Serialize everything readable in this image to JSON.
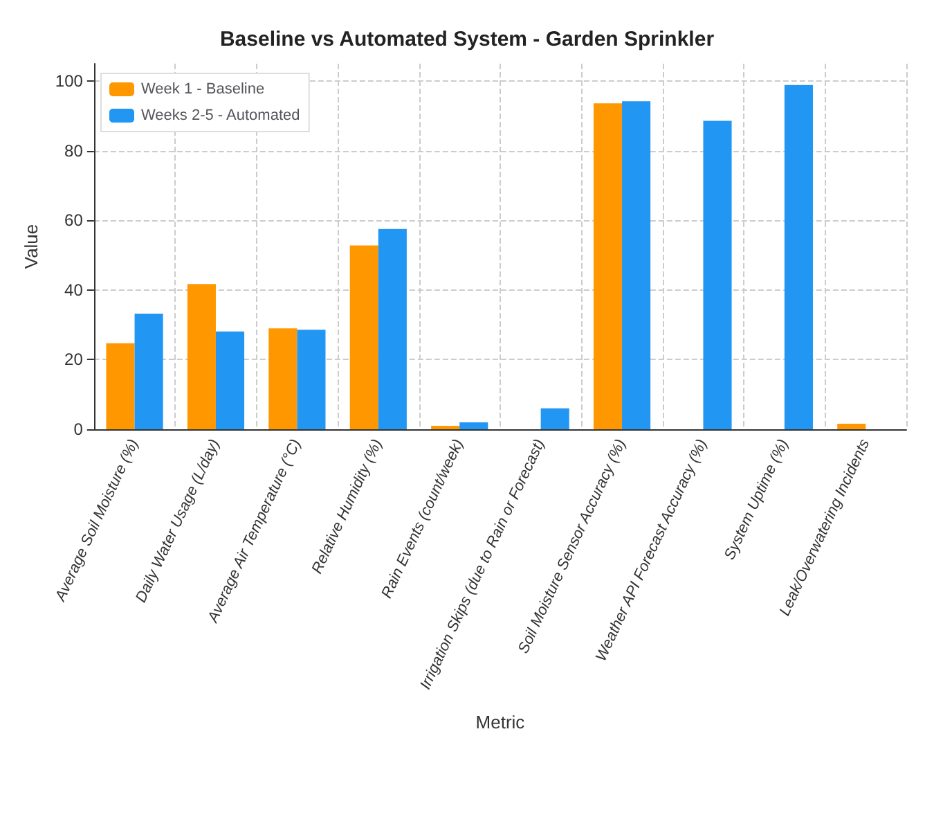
{
  "chart_data": {
    "type": "bar",
    "title": "Baseline vs Automated System - Garden Sprinkler",
    "xlabel": "Metric",
    "ylabel": "Value",
    "categories": [
      "Average Soil Moisture (%)",
      "Daily Water Usage (L/day)",
      "Average Air Temperature (°C)",
      "Relative Humidity (%)",
      "Rain Events (count/week)",
      "Irrigation Skips (due to Rain or Forecast)",
      "Soil Moisture Sensor Accuracy (%)",
      "Weather API Forecast Accuracy (%)",
      "System Uptime (%)",
      "Leak/Overwatering Incidents"
    ],
    "series": [
      {
        "name": "Week 1 - Baseline",
        "color": "#ff9800",
        "values": [
          24.7,
          41.7,
          29,
          52.8,
          1,
          0,
          93.6,
          0,
          0,
          1.6
        ]
      },
      {
        "name": "Weeks 2-5 - Automated",
        "color": "#2196f3",
        "values": [
          33.2,
          28.1,
          28.6,
          57.5,
          2,
          6,
          94.2,
          88.6,
          98.9,
          0
        ]
      }
    ],
    "ylim": [
      0,
      105
    ],
    "yticks": [
      0,
      20,
      40,
      60,
      80,
      100
    ],
    "grid": true,
    "legend": "top left"
  }
}
